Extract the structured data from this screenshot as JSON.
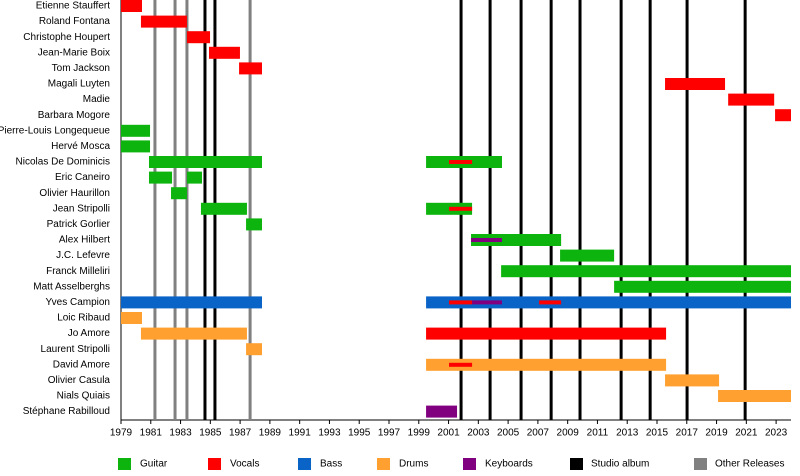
{
  "chart_data": {
    "type": "timeline",
    "categories": [
      "Etienne Stauffert",
      "Roland Fontana",
      "Christophe Houpert",
      "Jean-Marie Boix",
      "Tom Jackson",
      "Magali Luyten",
      "Madie",
      "Barbara Mogore",
      "Pierre-Louis Longequeue",
      "Hervé Mosca",
      "Nicolas De Dominicis",
      "Eric Caneiro",
      "Olivier Haurillon",
      "Jean Stripolli",
      "Patrick Gorlier",
      "Alex Hilbert",
      "J.C. Lefevre",
      "Franck Milleliri",
      "Matt Asselberghs",
      "Yves Campion",
      "Loic Ribaud",
      "Jo Amore",
      "Laurent Stripolli",
      "David Amore",
      "Olivier Casula",
      "Nials Quiais",
      "Stéphane Rabilloud"
    ],
    "xlim": [
      1979,
      2024
    ],
    "xticks": [
      1979,
      1981,
      1983,
      1985,
      1987,
      1989,
      1991,
      1993,
      1995,
      1997,
      1999,
      2001,
      2003,
      2005,
      2007,
      2009,
      2011,
      2013,
      2015,
      2017,
      2019,
      2021,
      2023
    ],
    "roles": [
      {
        "name": "Guitar",
        "color": "#0db40d"
      },
      {
        "name": "Vocals",
        "color": "#ff0000"
      },
      {
        "name": "Bass",
        "color": "#0a64c8"
      },
      {
        "name": "Drums",
        "color": "#ffa030"
      },
      {
        "name": "Keyboards",
        "color": "#800080"
      }
    ],
    "lines": [
      {
        "name": "Studio album",
        "color": "#000000",
        "values": [
          1984.64,
          1985.31,
          2001.84,
          2003.79,
          2005.87,
          2007.89,
          2009.83,
          2012.59,
          2014.54,
          2017.02,
          2020.92
        ]
      },
      {
        "name": "Other Releases",
        "color": "#808080",
        "values": [
          1981.28,
          1982.63,
          1983.43,
          1987.67
        ]
      }
    ],
    "periods": [
      {
        "member": "Etienne Stauffert",
        "role": "Vocals",
        "start": 1979.0,
        "end": 1980.41
      },
      {
        "member": "Roland Fontana",
        "role": "Vocals",
        "start": 1980.34,
        "end": 1983.43
      },
      {
        "member": "Christophe Houpert",
        "role": "Vocals",
        "start": 1983.43,
        "end": 1984.98
      },
      {
        "member": "Jean-Marie Boix",
        "role": "Vocals",
        "start": 1984.91,
        "end": 1986.99
      },
      {
        "member": "Tom Jackson",
        "role": "Vocals",
        "start": 1986.93,
        "end": 1988.47
      },
      {
        "member": "Magali Luyten",
        "role": "Vocals",
        "start": 2015.54,
        "end": 2019.57
      },
      {
        "member": "Madie",
        "role": "Vocals",
        "start": 2019.78,
        "end": 2022.87
      },
      {
        "member": "Barbara Mogore",
        "role": "Vocals",
        "start": 2022.93,
        "end": 2024.0
      },
      {
        "member": "Pierre-Louis Longequeue",
        "role": "Guitar",
        "start": 1979.0,
        "end": 1980.95
      },
      {
        "member": "Hervé Mosca",
        "role": "Guitar",
        "start": 1979.0,
        "end": 1980.95
      },
      {
        "member": "Nicolas De Dominicis",
        "role": "Guitar",
        "start": 1980.88,
        "end": 1988.47
      },
      {
        "member": "Nicolas De Dominicis",
        "role": "Guitar",
        "start": 1999.49,
        "end": 2004.59
      },
      {
        "member": "Nicolas De Dominicis",
        "role": "Vocals",
        "start": 2001.03,
        "end": 2002.58
      },
      {
        "member": "Eric Caneiro",
        "role": "Guitar",
        "start": 1980.88,
        "end": 1982.43
      },
      {
        "member": "Eric Caneiro",
        "role": "Guitar",
        "start": 1983.43,
        "end": 1984.44
      },
      {
        "member": "Olivier Haurillon",
        "role": "Guitar",
        "start": 1982.36,
        "end": 1983.43
      },
      {
        "member": "Jean Stripolli",
        "role": "Guitar",
        "start": 1984.37,
        "end": 1987.46
      },
      {
        "member": "Jean Stripolli",
        "role": "Guitar",
        "start": 1999.49,
        "end": 2002.58
      },
      {
        "member": "Jean Stripolli",
        "role": "Vocals",
        "start": 2001.03,
        "end": 2002.58
      },
      {
        "member": "Patrick Gorlier",
        "role": "Guitar",
        "start": 1987.4,
        "end": 1988.47
      },
      {
        "member": "Alex Hilbert",
        "role": "Guitar",
        "start": 2002.51,
        "end": 2008.56
      },
      {
        "member": "Alex Hilbert",
        "role": "Keyboards",
        "start": 2002.51,
        "end": 2004.59
      },
      {
        "member": "J.C. Lefevre",
        "role": "Guitar",
        "start": 2008.49,
        "end": 2012.12
      },
      {
        "member": "Franck Milleliri",
        "role": "Guitar",
        "start": 2004.53,
        "end": 2024.0
      },
      {
        "member": "Matt Asselberghs",
        "role": "Guitar",
        "start": 2012.12,
        "end": 2024.0
      },
      {
        "member": "Yves Campion",
        "role": "Bass",
        "start": 1979.0,
        "end": 1988.47
      },
      {
        "member": "Yves Campion",
        "role": "Bass",
        "start": 1999.49,
        "end": 2024.0
      },
      {
        "member": "Yves Campion",
        "role": "Vocals",
        "start": 2001.03,
        "end": 2002.58
      },
      {
        "member": "Yves Campion",
        "role": "Keyboards",
        "start": 2002.58,
        "end": 2004.59
      },
      {
        "member": "Yves Campion",
        "role": "Vocals",
        "start": 2007.08,
        "end": 2008.56
      },
      {
        "member": "Loic Ribaud",
        "role": "Drums",
        "start": 1979.0,
        "end": 1980.41
      },
      {
        "member": "Jo Amore",
        "role": "Drums",
        "start": 1980.34,
        "end": 1987.46
      },
      {
        "member": "Jo Amore",
        "role": "Vocals",
        "start": 1999.49,
        "end": 2015.61
      },
      {
        "member": "Laurent Stripolli",
        "role": "Drums",
        "start": 1987.4,
        "end": 1988.47
      },
      {
        "member": "David Amore",
        "role": "Drums",
        "start": 1999.49,
        "end": 2015.61
      },
      {
        "member": "David Amore",
        "role": "Vocals",
        "start": 2001.03,
        "end": 2002.58
      },
      {
        "member": "Olivier Casula",
        "role": "Drums",
        "start": 2015.54,
        "end": 2019.17
      },
      {
        "member": "Nials Quiais",
        "role": "Drums",
        "start": 2019.1,
        "end": 2024.0
      },
      {
        "member": "Stéphane Rabilloud",
        "role": "Keyboards",
        "start": 1999.49,
        "end": 2001.57
      }
    ]
  }
}
